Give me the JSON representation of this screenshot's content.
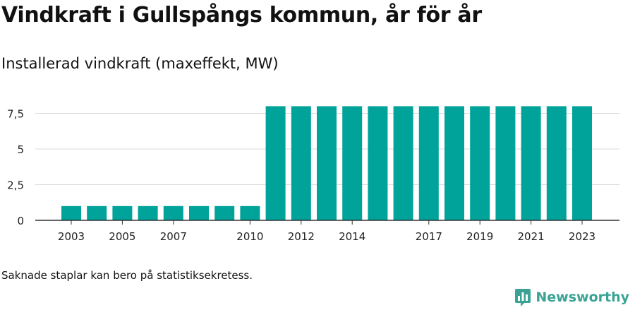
{
  "title": "Vindkraft i Gullspångs kommun, år för år",
  "subtitle": "Installerad vindkraft (maxeffekt, MW)",
  "footnote": "Saknade staplar kan bero på statistiksekretess.",
  "brand": {
    "name": "Newsworthy",
    "icon": "newsworthy-logo-icon",
    "color": "#3aa394"
  },
  "chart_data": {
    "type": "bar",
    "title": "Installerad vindkraft (maxeffekt, MW)",
    "xlabel": "",
    "ylabel": "",
    "ylim": [
      0,
      8.6
    ],
    "yticks": [
      0,
      2.5,
      5,
      7.5
    ],
    "ytick_labels": [
      "0",
      "2,5",
      "5",
      "7,5"
    ],
    "categories": [
      2003,
      2004,
      2005,
      2006,
      2007,
      2008,
      2009,
      2010,
      2011,
      2012,
      2013,
      2014,
      2015,
      2016,
      2017,
      2018,
      2019,
      2020,
      2021,
      2022,
      2023
    ],
    "values": [
      1,
      1,
      1,
      1,
      1,
      1,
      1,
      1,
      8,
      8,
      8,
      8,
      8,
      8,
      8,
      8,
      8,
      8,
      8,
      8,
      8
    ],
    "xtick_labels": [
      "2003",
      "2005",
      "2007",
      "2010",
      "2012",
      "2014",
      "2017",
      "2019",
      "2021",
      "2023"
    ],
    "bar_color": "#00a39a",
    "grid": true
  }
}
